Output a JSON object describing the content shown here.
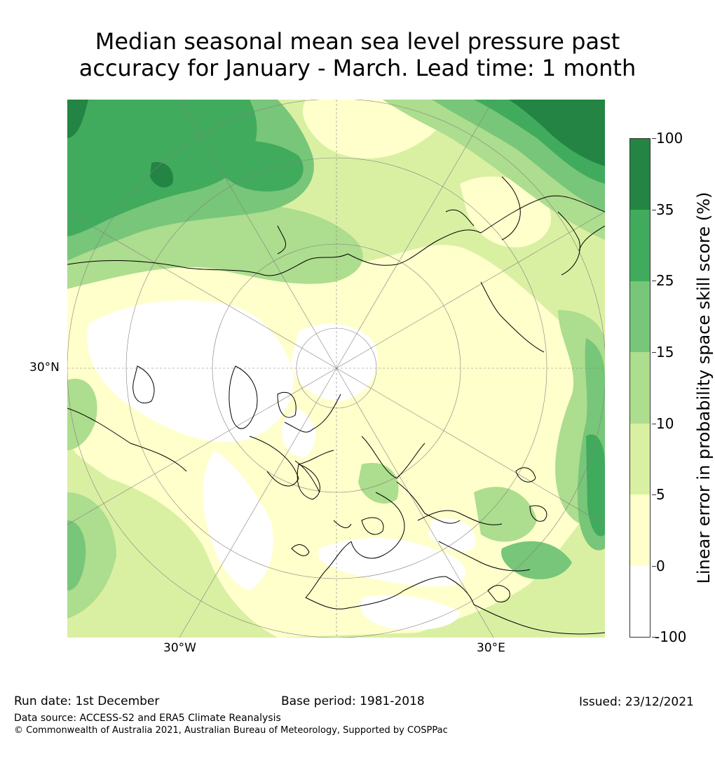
{
  "title_line1": "Median seasonal mean sea level pressure past",
  "title_line2": "accuracy for January - March. Lead time: 1 month",
  "map": {
    "projection": "north-polar-stereographic",
    "lat_labels": [
      "30°N"
    ],
    "lon_labels": [
      "30°W",
      "30°E"
    ]
  },
  "colorbar": {
    "title": "Linear error in probability space skill score (%)",
    "ticks": [
      "100",
      "35",
      "25",
      "15",
      "10",
      "5",
      "0",
      "-100"
    ],
    "colors": [
      "#238443",
      "#41ab5d",
      "#78c679",
      "#addd8e",
      "#d9f0a3",
      "#ffffcc",
      "#ffffff"
    ]
  },
  "footer": {
    "run_date": "Run date: 1st December",
    "base_period": "Base period: 1981-2018",
    "issued": "Issued: 23/12/2021",
    "data_source": "Data source: ACCESS-S2 and ERA5 Climate Reanalysis",
    "copyright": "© Commonwealth of Australia 2021, Australian Bureau of Meteorology, Supported by COSPPac"
  }
}
